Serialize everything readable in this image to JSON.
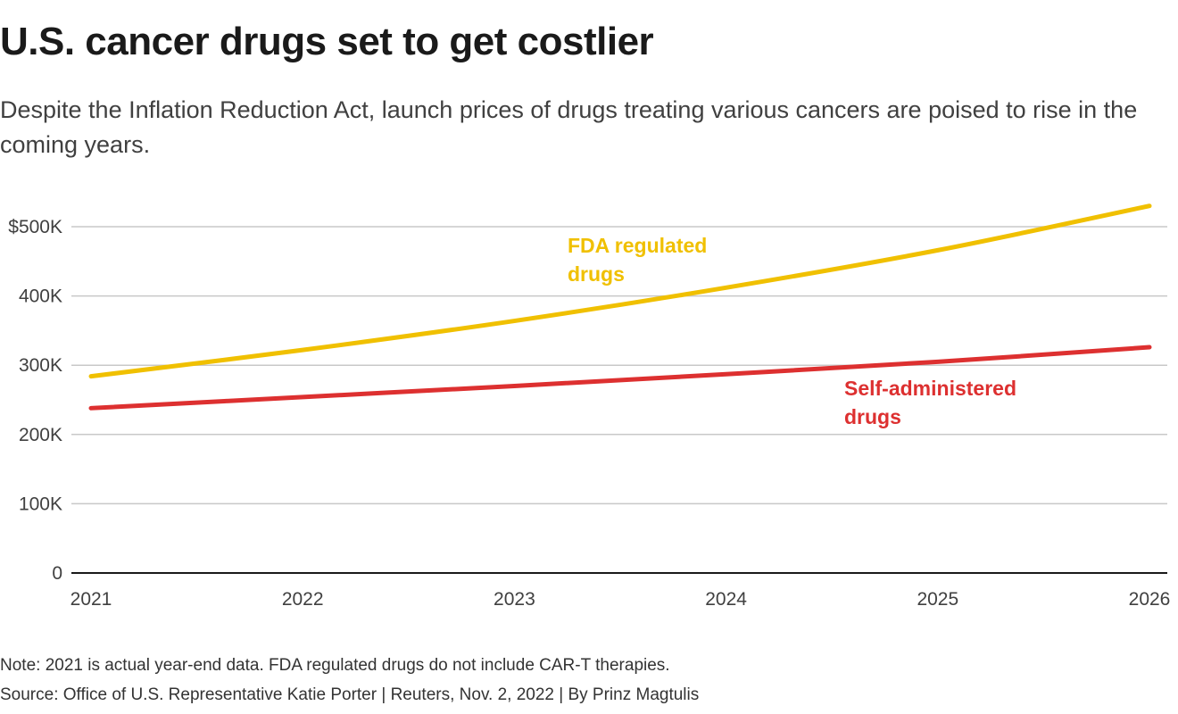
{
  "header": {
    "title": "U.S. cancer drugs set to get costlier",
    "subtitle": "Despite the Inflation Reduction Act, launch prices of drugs treating various cancers are poised to rise in the coming years."
  },
  "footer": {
    "note": "Note: 2021 is actual year-end data. FDA regulated drugs do not include CAR-T therapies.",
    "source": "Source: Office of U.S. Representative Katie Porter | Reuters, Nov. 2, 2022 | By Prinz Magtulis"
  },
  "colors": {
    "fda": "#f0c000",
    "self": "#dd3030",
    "grid": "#c8c8c8",
    "axis": "#1a1a1a"
  },
  "chart_data": {
    "type": "line",
    "title": "U.S. cancer drugs set to get costlier",
    "xlabel": "",
    "ylabel": "",
    "x": [
      2021,
      2022,
      2023,
      2024,
      2025,
      2026
    ],
    "x_tick_labels": [
      "2021",
      "2022",
      "2023",
      "2024",
      "2025",
      "2026"
    ],
    "y_ticks": [
      0,
      100000,
      200000,
      300000,
      400000,
      500000
    ],
    "y_tick_labels": [
      "0",
      "100K",
      "200K",
      "300K",
      "400K",
      "$500K"
    ],
    "ylim": [
      0,
      540000
    ],
    "grid": true,
    "series": [
      {
        "name": "FDA regulated drugs",
        "label_lines": [
          "FDA regulated",
          "drugs"
        ],
        "color_key": "fda",
        "values": [
          284000,
          322000,
          364000,
          412000,
          466000,
          530000
        ]
      },
      {
        "name": "Self-administered drugs",
        "label_lines": [
          "Self-administered",
          "drugs"
        ],
        "color_key": "self",
        "values": [
          238000,
          254000,
          270000,
          287000,
          305000,
          326000
        ]
      }
    ]
  }
}
